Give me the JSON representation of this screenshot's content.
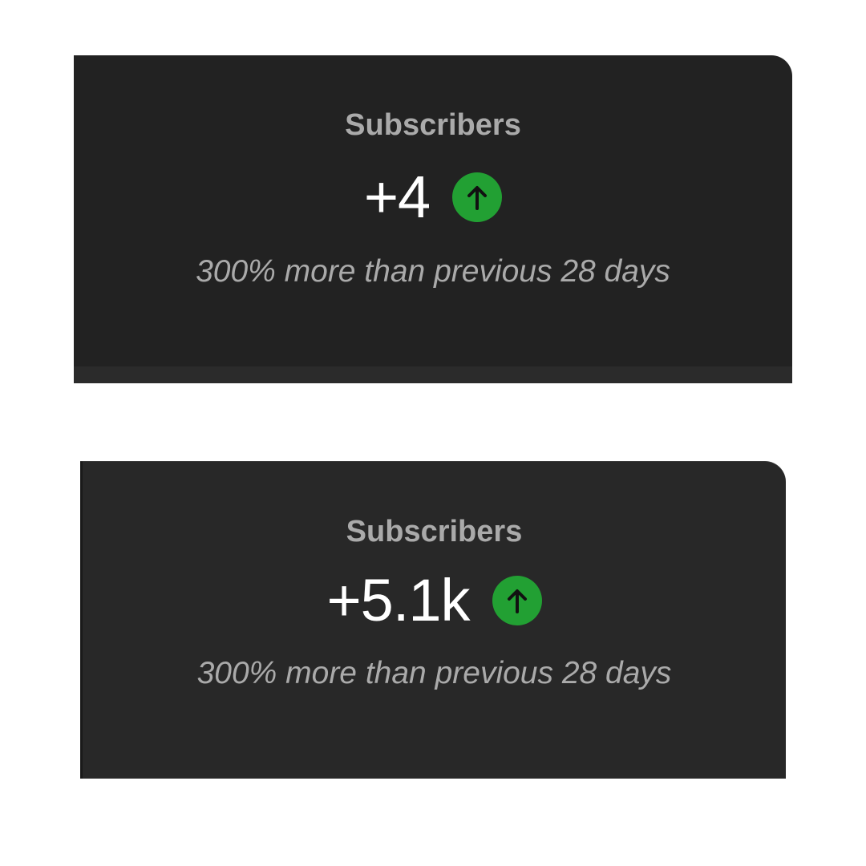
{
  "cards": [
    {
      "title": "Subscribers",
      "value": "+4",
      "trend_icon": "arrow-up-circle-icon",
      "comparison": "300% more than previous 28 days"
    },
    {
      "title": "Subscribers",
      "value": "+5.1k",
      "trend_icon": "arrow-up-circle-icon",
      "comparison": "300% more than previous 28 days"
    }
  ],
  "colors": {
    "positive": "#22a033",
    "card_background": "#222222",
    "value_text": "#ffffff",
    "secondary_text": "#aaaaaa"
  }
}
